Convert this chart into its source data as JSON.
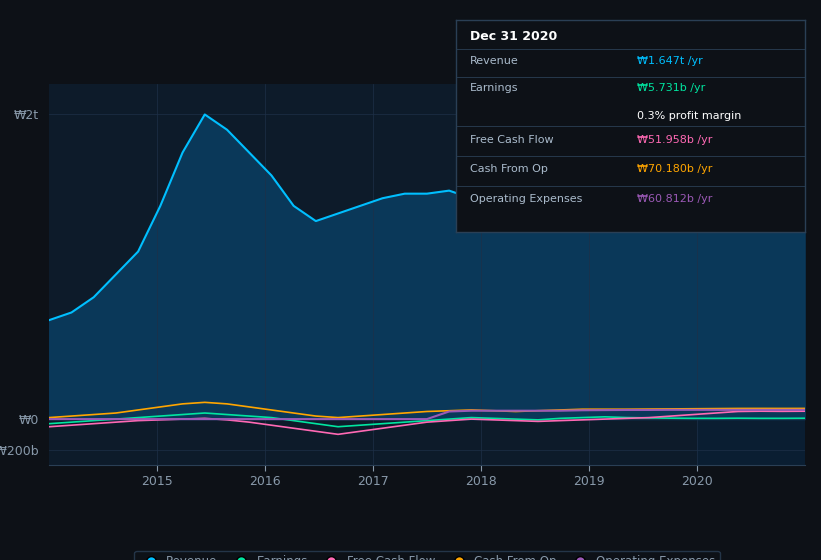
{
  "bg_color": "#0d1117",
  "chart_bg": "#0d1b2a",
  "colors": {
    "revenue": "#00bfff",
    "earnings": "#00e5a0",
    "fcf": "#ff69b4",
    "cashop": "#ffa500",
    "opex": "#9b59b6",
    "revenue_fill": "#0a3a5c",
    "axis_text": "#8899aa",
    "grid": "#1e3048",
    "tooltip_bg": "#0d1117",
    "tooltip_border": "#2a3f55"
  },
  "tooltip": {
    "date": "Dec 31 2020",
    "revenue_label": "Revenue",
    "revenue_value": "₩1.647t /yr",
    "earnings_label": "Earnings",
    "earnings_value": "₩5.731b /yr",
    "profit_margin": "0.3% profit margin",
    "fcf_label": "Free Cash Flow",
    "fcf_value": "₩51.958b /yr",
    "cashop_label": "Cash From Op",
    "cashop_value": "₩70.180b /yr",
    "opex_label": "Operating Expenses",
    "opex_value": "₩60.812b /yr"
  },
  "ytick_labels": [
    "₩2t",
    "₩0",
    "-₩200b"
  ],
  "xtick_labels": [
    "2015",
    "2016",
    "2017",
    "2018",
    "2019",
    "2020"
  ],
  "legend": [
    {
      "label": "Revenue",
      "color": "#00bfff"
    },
    {
      "label": "Earnings",
      "color": "#00e5a0"
    },
    {
      "label": "Free Cash Flow",
      "color": "#ff69b4"
    },
    {
      "label": "Cash From Op",
      "color": "#ffa500"
    },
    {
      "label": "Operating Expenses",
      "color": "#9b59b6"
    }
  ],
  "revenue_data": [
    650,
    700,
    800,
    950,
    1100,
    1400,
    1750,
    2000,
    1900,
    1750,
    1600,
    1400,
    1300,
    1350,
    1400,
    1450,
    1480,
    1480,
    1500,
    1450,
    1420,
    1380,
    1350,
    1380,
    1420,
    1480,
    1550,
    1600,
    1650,
    1680,
    1700,
    1750,
    1700,
    1650,
    1647
  ],
  "earnings_data": [
    -30,
    -20,
    -10,
    0,
    10,
    20,
    30,
    40,
    30,
    20,
    10,
    -10,
    -30,
    -50,
    -40,
    -30,
    -20,
    -10,
    0,
    10,
    5,
    0,
    -5,
    5,
    10,
    15,
    10,
    8,
    6,
    5,
    5,
    6,
    5,
    5,
    5.731
  ],
  "fcf_data": [
    -50,
    -40,
    -30,
    -20,
    -10,
    -5,
    0,
    5,
    -5,
    -20,
    -40,
    -60,
    -80,
    -100,
    -80,
    -60,
    -40,
    -20,
    -10,
    0,
    -5,
    -10,
    -15,
    -10,
    -5,
    0,
    5,
    10,
    20,
    30,
    40,
    50,
    51.958,
    51,
    51.958
  ],
  "cashop_data": [
    10,
    20,
    30,
    40,
    60,
    80,
    100,
    110,
    100,
    80,
    60,
    40,
    20,
    10,
    20,
    30,
    40,
    50,
    55,
    60,
    55,
    50,
    55,
    60,
    65,
    65,
    65,
    66,
    67,
    68,
    69,
    70,
    70.18,
    70,
    70.18
  ],
  "opex_data": [
    0,
    0,
    0,
    0,
    0,
    0,
    0,
    0,
    0,
    0,
    0,
    0,
    0,
    0,
    0,
    0,
    0,
    0,
    50,
    55,
    55,
    55,
    55,
    55,
    58,
    59,
    60,
    60,
    61,
    60.812,
    60.812,
    60.812,
    60.812,
    60.812,
    60.812
  ]
}
